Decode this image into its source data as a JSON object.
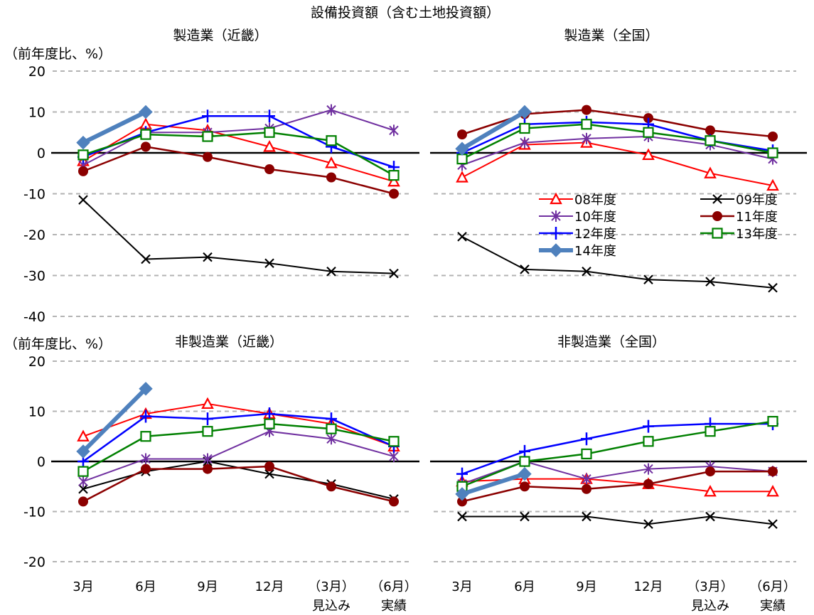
{
  "title": "設備投資額（含む土地投資額）",
  "y_unit_label": "（前年度比、%）",
  "x_labels": [
    "3月",
    "6月",
    "9月",
    "12月",
    "（3月）",
    "（6月）"
  ],
  "x_sublabels": [
    "",
    "",
    "",
    "",
    "見込み",
    "実績"
  ],
  "series_styles": [
    {
      "name": "08年度",
      "color": "#ff0000",
      "marker": "triangle",
      "width": 2
    },
    {
      "name": "09年度",
      "color": "#000000",
      "marker": "x",
      "width": 2
    },
    {
      "name": "10年度",
      "color": "#7030a0",
      "marker": "asterisk",
      "width": 2
    },
    {
      "name": "11年度",
      "color": "#8b0000",
      "marker": "circle",
      "width": 2.5
    },
    {
      "name": "12年度",
      "color": "#0000ff",
      "marker": "plus",
      "width": 2.5
    },
    {
      "name": "13年度",
      "color": "#008000",
      "marker": "square",
      "width": 2.5
    },
    {
      "name": "14年度",
      "color": "#4f81bd",
      "marker": "diamond",
      "width": 6
    }
  ],
  "chart_data": [
    {
      "type": "line",
      "title": "製造業（近畿）",
      "ylabel": "（前年度比、%）",
      "ylim": [
        -40,
        20
      ],
      "yticks": [
        20,
        10,
        0,
        -10,
        -20,
        -30,
        -40
      ],
      "categories": [
        "3月",
        "6月",
        "9月",
        "12月",
        "（3月）見込み",
        "（6月）実績"
      ],
      "series": [
        {
          "name": "08年度",
          "values": [
            -2,
            7,
            5.5,
            1.5,
            -2.5,
            -7
          ]
        },
        {
          "name": "09年度",
          "values": [
            -11.5,
            -26,
            -25.5,
            -27,
            -29,
            -29.5
          ]
        },
        {
          "name": "10年度",
          "values": [
            -3,
            5,
            5,
            6,
            10.5,
            5.5
          ]
        },
        {
          "name": "11年度",
          "values": [
            -4.5,
            1.5,
            -1,
            -4,
            -6,
            -10
          ]
        },
        {
          "name": "12年度",
          "values": [
            -1,
            5,
            9,
            9,
            1.5,
            -3.5
          ]
        },
        {
          "name": "13年度",
          "values": [
            -0.5,
            4.5,
            4,
            5,
            3,
            -5.5
          ]
        },
        {
          "name": "14年度",
          "values": [
            2.5,
            10,
            null,
            null,
            null,
            null
          ]
        }
      ]
    },
    {
      "type": "line",
      "title": "製造業（全国）",
      "ylim": [
        -40,
        20
      ],
      "yticks": [
        20,
        10,
        0,
        -10,
        -20,
        -30,
        -40
      ],
      "categories": [
        "3月",
        "6月",
        "9月",
        "12月",
        "（3月）見込み",
        "（6月）実績"
      ],
      "series": [
        {
          "name": "08年度",
          "values": [
            -6,
            2,
            2.5,
            -0.5,
            -5,
            -8
          ]
        },
        {
          "name": "09年度",
          "values": [
            -20.5,
            -28.5,
            -29,
            -31,
            -31.5,
            -33
          ]
        },
        {
          "name": "10年度",
          "values": [
            -3,
            2.5,
            3.5,
            4,
            2,
            -1.5
          ]
        },
        {
          "name": "11年度",
          "values": [
            4.5,
            9.5,
            10.5,
            8.5,
            5.5,
            4
          ]
        },
        {
          "name": "12年度",
          "values": [
            0,
            7,
            7.5,
            7,
            3,
            0.5
          ]
        },
        {
          "name": "13年度",
          "values": [
            -1.5,
            6,
            7,
            5,
            3,
            0
          ]
        },
        {
          "name": "14年度",
          "values": [
            1,
            10,
            null,
            null,
            null,
            null
          ]
        }
      ]
    },
    {
      "type": "line",
      "title": "非製造業（近畿）",
      "ylabel": "（前年度比、%）",
      "ylim": [
        -20,
        20
      ],
      "yticks": [
        20,
        10,
        0,
        -10,
        -20
      ],
      "categories": [
        "3月",
        "6月",
        "9月",
        "12月",
        "（3月）見込み",
        "（6月）実績"
      ],
      "series": [
        {
          "name": "08年度",
          "values": [
            5,
            9.5,
            11.5,
            9.5,
            7.5,
            3
          ]
        },
        {
          "name": "09年度",
          "values": [
            -5.5,
            -2,
            0,
            -2.5,
            -4.5,
            -7.5
          ]
        },
        {
          "name": "10年度",
          "values": [
            -4,
            0.5,
            0.5,
            6,
            4.5,
            1
          ]
        },
        {
          "name": "11年度",
          "values": [
            -8,
            -1.5,
            -1.5,
            -1,
            -5,
            -8
          ]
        },
        {
          "name": "12年度",
          "values": [
            0,
            9,
            8.5,
            9.5,
            8.5,
            3
          ]
        },
        {
          "name": "13年度",
          "values": [
            -2,
            5,
            6,
            7.5,
            6.5,
            4
          ]
        },
        {
          "name": "14年度",
          "values": [
            2,
            14.5,
            null,
            null,
            null,
            null
          ]
        }
      ]
    },
    {
      "type": "line",
      "title": "非製造業（全国）",
      "ylim": [
        -20,
        20
      ],
      "yticks": [
        20,
        10,
        0,
        -10,
        -20
      ],
      "categories": [
        "3月",
        "6月",
        "9月",
        "12月",
        "（3月）見込み",
        "（6月）実績"
      ],
      "series": [
        {
          "name": "08年度",
          "values": [
            -4,
            -3.5,
            -3.5,
            -4.5,
            -6,
            -6
          ]
        },
        {
          "name": "09年度",
          "values": [
            -11,
            -11,
            -11,
            -12.5,
            -11,
            -12.5
          ]
        },
        {
          "name": "10年度",
          "values": [
            -4.5,
            0,
            -3.5,
            -1.5,
            -1,
            -2
          ]
        },
        {
          "name": "11年度",
          "values": [
            -8,
            -5,
            -5.5,
            -4.5,
            -2,
            -2
          ]
        },
        {
          "name": "12年度",
          "values": [
            -2.5,
            2,
            4.5,
            7,
            7.5,
            7.5
          ]
        },
        {
          "name": "13年度",
          "values": [
            -5,
            0,
            1.5,
            4,
            6,
            8
          ]
        },
        {
          "name": "14年度",
          "values": [
            -6.5,
            -2.5,
            null,
            null,
            null,
            null
          ]
        }
      ]
    }
  ]
}
